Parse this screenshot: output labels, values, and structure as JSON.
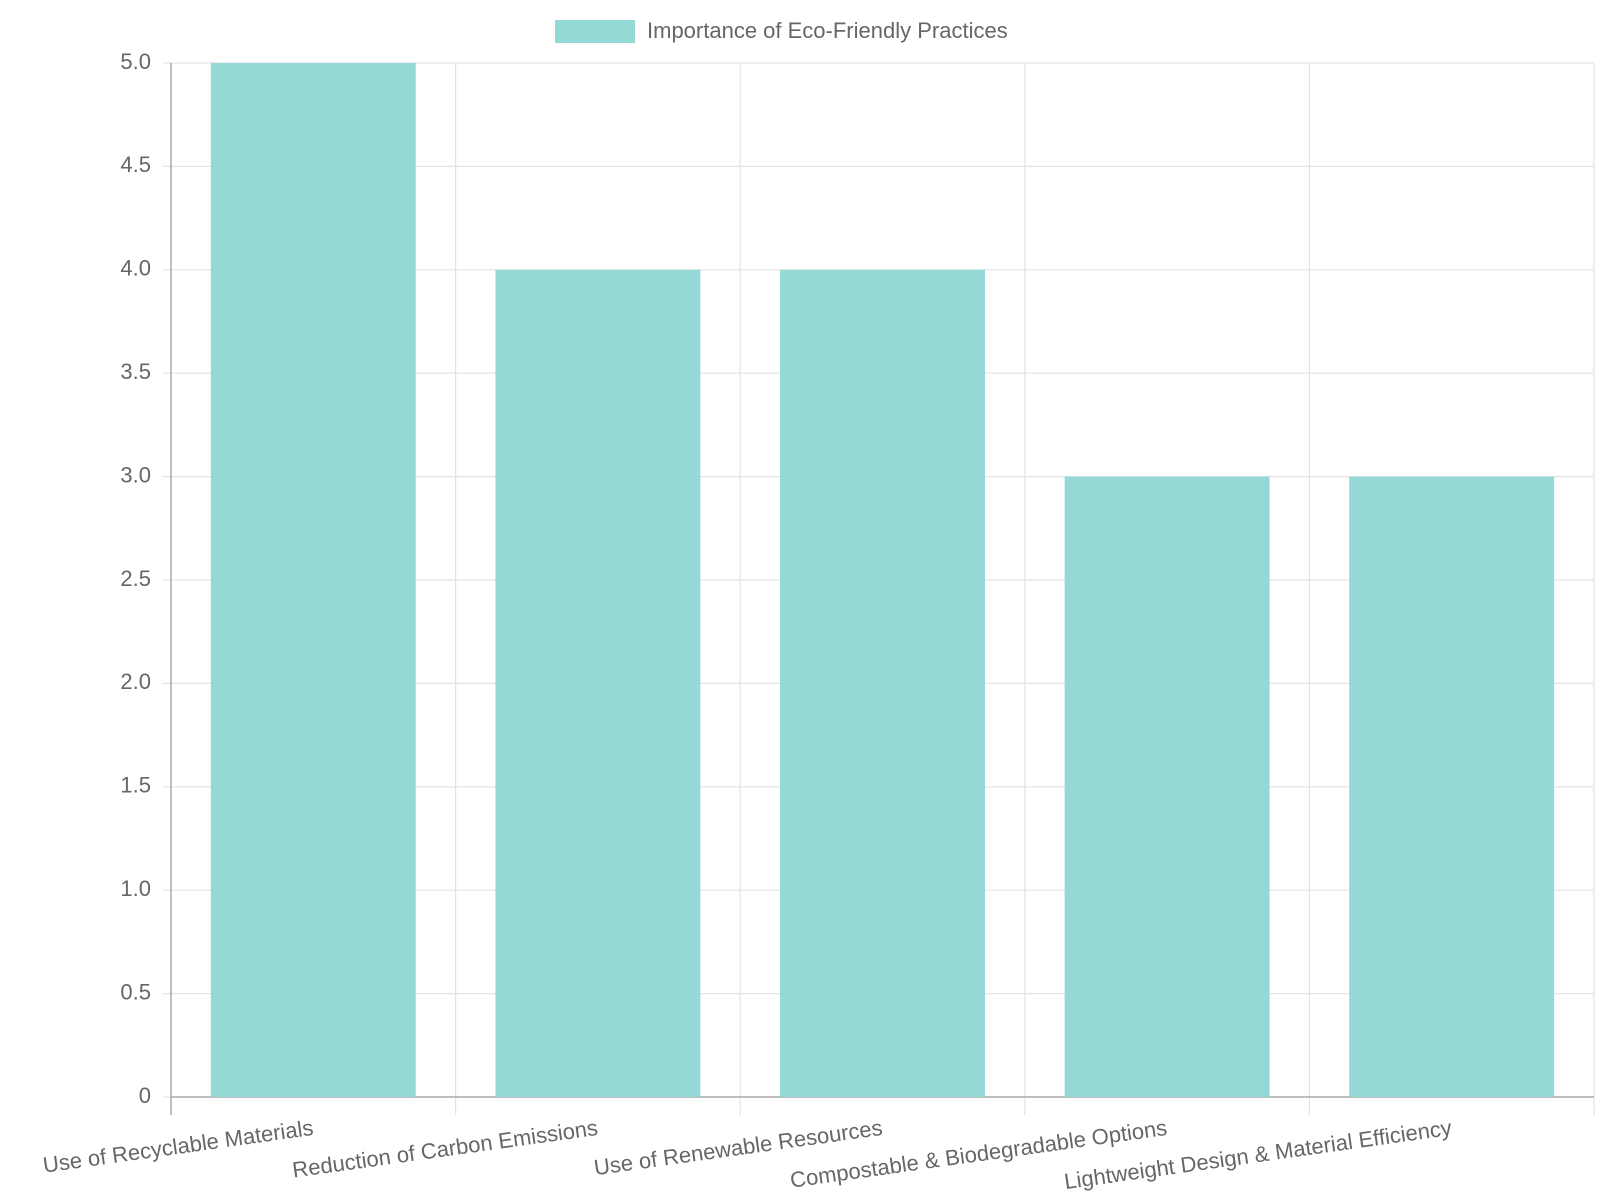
{
  "chart_data": {
    "type": "bar",
    "legend_position": "top",
    "series": [
      {
        "name": "Importance of Eco-Friendly Practices",
        "color": "#94d9d6",
        "values": [
          5,
          4,
          4,
          3,
          3
        ]
      }
    ],
    "categories": [
      "Use of Recyclable Materials",
      "Reduction of Carbon Emissions",
      "Use of Renewable Resources",
      "Compostable & Biodegradable Options",
      "Lightweight Design & Material Efficiency"
    ],
    "ylim": [
      0,
      5
    ],
    "yticks": [
      0,
      0.5,
      {
        "value": 1,
        "label": "1.0"
      },
      1.5,
      {
        "value": 2,
        "label": "2.0"
      },
      2.5,
      {
        "value": 3,
        "label": "3.0"
      },
      3.5,
      {
        "value": 4,
        "label": "4.0"
      },
      4.5,
      {
        "value": 5,
        "label": "5.0"
      }
    ],
    "grid": true
  }
}
